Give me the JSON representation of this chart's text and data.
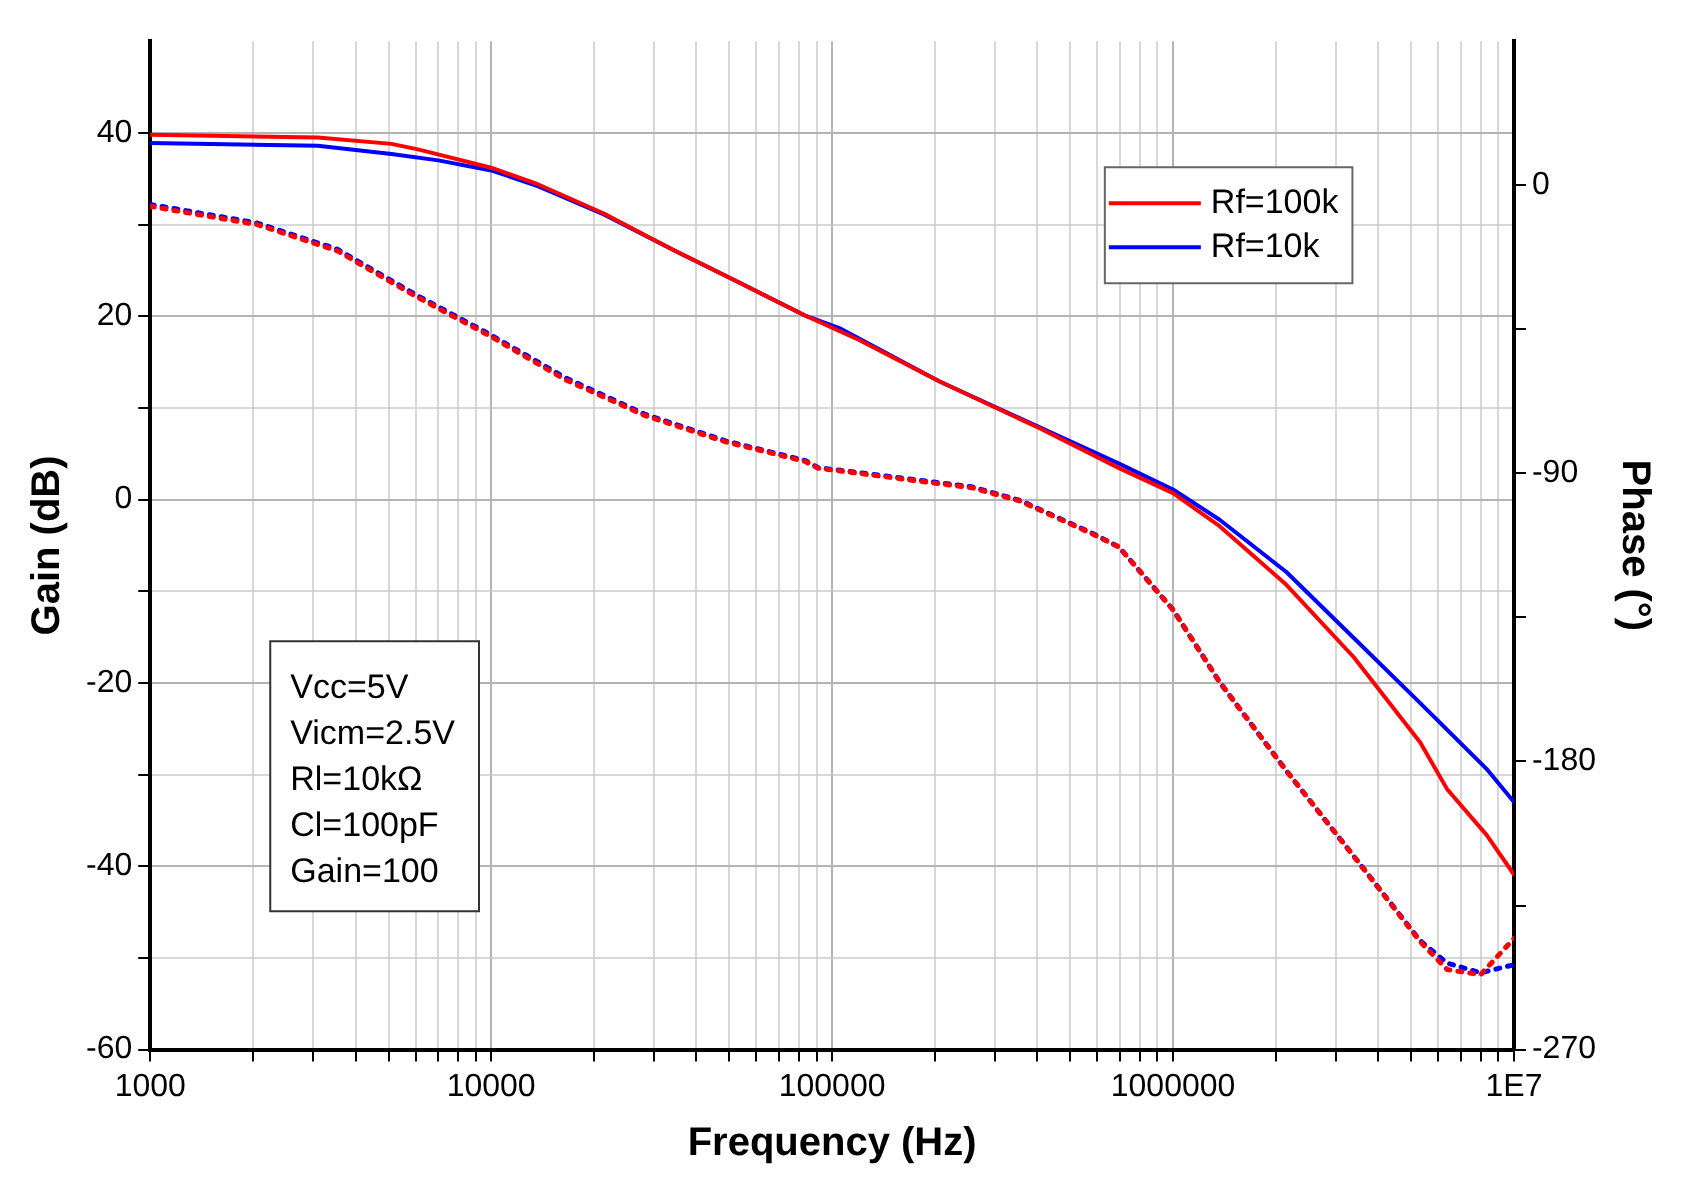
{
  "chart_data": {
    "type": "line",
    "xlabel": "Frequency (Hz)",
    "ylabel": "Gain (dB)",
    "y2label": "Phase (°)",
    "log": "x",
    "grid": true,
    "legend": "top right",
    "marker": "none",
    "xlim": [
      1000,
      10000000
    ],
    "xticks": [
      1000,
      {
        "value": 2000,
        "label": null
      },
      {
        "value": 3000,
        "label": null
      },
      {
        "value": 4000,
        "label": null
      },
      {
        "value": 5000,
        "label": null
      },
      {
        "value": 6000,
        "label": null
      },
      {
        "value": 7000,
        "label": null
      },
      {
        "value": 8000,
        "label": null
      },
      {
        "value": 9000,
        "label": null
      },
      10000,
      {
        "value": 20000,
        "label": null
      },
      {
        "value": 30000,
        "label": null
      },
      {
        "value": 40000,
        "label": null
      },
      {
        "value": 50000,
        "label": null
      },
      {
        "value": 60000,
        "label": null
      },
      {
        "value": 70000,
        "label": null
      },
      {
        "value": 80000,
        "label": null
      },
      {
        "value": 90000,
        "label": null
      },
      100000,
      {
        "value": 200000,
        "label": null
      },
      {
        "value": 300000,
        "label": null
      },
      {
        "value": 400000,
        "label": null
      },
      {
        "value": 500000,
        "label": null
      },
      {
        "value": 600000,
        "label": null
      },
      {
        "value": 700000,
        "label": null
      },
      {
        "value": 800000,
        "label": null
      },
      {
        "value": 900000,
        "label": null
      },
      1000000,
      {
        "value": 2000000,
        "label": null
      },
      {
        "value": 3000000,
        "label": null
      },
      {
        "value": 4000000,
        "label": null
      },
      {
        "value": 5000000,
        "label": null
      },
      {
        "value": 6000000,
        "label": null
      },
      {
        "value": 7000000,
        "label": null
      },
      {
        "value": 8000000,
        "label": null
      },
      {
        "value": 9000000,
        "label": null
      },
      {
        "value": 10000000,
        "label": "1E7"
      }
    ],
    "ylim": [
      -60,
      50
    ],
    "yticks": [
      -60,
      {
        "value": -50,
        "label": null
      },
      -40,
      {
        "value": -30,
        "label": null
      },
      -20,
      {
        "value": -10,
        "label": null
      },
      0,
      {
        "value": 10,
        "label": null
      },
      20,
      {
        "value": 30,
        "label": null
      },
      40
    ],
    "y2lim": [
      -270,
      45
    ],
    "y2ticks": [
      -270,
      {
        "value": -225,
        "label": null
      },
      -180,
      {
        "value": -135,
        "label": null
      },
      -90,
      {
        "value": -45,
        "label": null
      },
      0
    ],
    "annotations": [
      "Vcc=5V",
      "Vicm=2.5V",
      "Rl=10kΩ",
      "Cl=100pF",
      "Gain=100"
    ],
    "series": [
      {
        "name": "Rf=100k",
        "color": "#ff0000",
        "line_style": "solid",
        "x": [
          1000,
          3100,
          5100,
          6100,
          10000,
          13700,
          21400,
          33900,
          53200,
          83000,
          120000,
          206000,
          405000,
          697000,
          1000000,
          1370000,
          2150000,
          3390000,
          5310000,
          6370000,
          8320000,
          10000000
        ],
        "values": [
          39.8,
          39.5,
          38.8,
          38.2,
          36.2,
          34.4,
          31.2,
          27.3,
          23.7,
          20.1,
          17.4,
          12.9,
          7.8,
          3.4,
          0.7,
          -2.9,
          -9.3,
          -17.2,
          -26.5,
          -31.6,
          -36.6,
          -40.9
        ]
      },
      {
        "name": "Rf=10k",
        "color": "#0000ff",
        "line_style": "solid",
        "x": [
          1000,
          3100,
          5100,
          7000,
          10000,
          13700,
          21400,
          33900,
          53200,
          83000,
          105000,
          206000,
          405000,
          697000,
          1000000,
          1370000,
          2150000,
          3390000,
          5310000,
          8320000,
          10000000
        ],
        "values": [
          38.9,
          38.6,
          37.7,
          37.0,
          35.9,
          34.2,
          31.1,
          27.3,
          23.7,
          20.1,
          18.7,
          12.9,
          7.9,
          3.9,
          1.1,
          -2.2,
          -7.9,
          -15.1,
          -22.2,
          -29.4,
          -33.0
        ]
      },
      {
        "color": "#ff0000",
        "axis": "y2",
        "line_style": "dotted",
        "x": [
          1000,
          2060,
          3540,
          6080,
          10000,
          16400,
          28200,
          48500,
          83400,
          91000,
          257000,
          355000,
          582000,
          694000,
          1000000,
          1370000,
          2150000,
          3390000,
          5310000,
          6370000,
          7980000,
          10000000
        ],
        "values": [
          -6.6,
          -12.3,
          -20.5,
          -35.0,
          -47.3,
          -60.6,
          -71.9,
          -80.1,
          -86.3,
          -88.4,
          -94.5,
          -98.6,
          -109,
          -113,
          -132.6,
          -155.2,
          -182.9,
          -209.6,
          -236.3,
          -245,
          -246.6,
          -235.3
        ]
      },
      {
        "color": "#0000ff",
        "axis": "y2",
        "line_style": "dotted",
        "x": [
          1000,
          2060,
          3540,
          6080,
          10000,
          16400,
          28200,
          48500,
          83400,
          91000,
          257000,
          355000,
          582000,
          694000,
          1000000,
          1370000,
          2150000,
          3390000,
          5310000,
          6370000,
          7980000,
          10000000
        ],
        "values": [
          -6.0,
          -11.8,
          -20.0,
          -34.5,
          -46.8,
          -60.0,
          -71.5,
          -79.8,
          -86.0,
          -88.2,
          -94.2,
          -98.4,
          -108.8,
          -113,
          -132.6,
          -155.2,
          -182.9,
          -209.6,
          -236.0,
          -243,
          -246.0,
          -243.5
        ]
      }
    ]
  }
}
